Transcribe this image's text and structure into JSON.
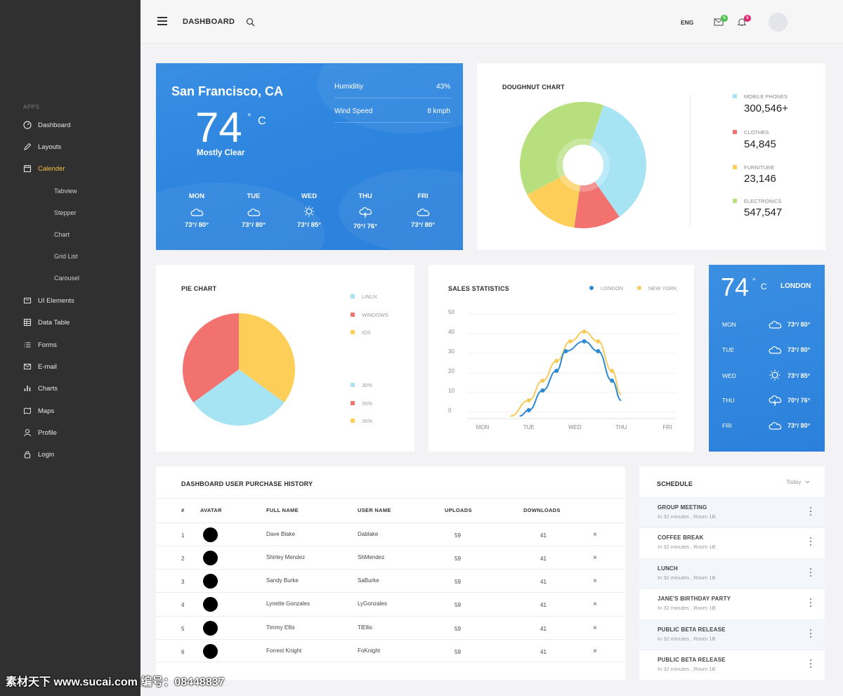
{
  "sidebar": {
    "section": "APPS",
    "items": [
      {
        "label": "Dashboard",
        "icon": "dashboard-icon"
      },
      {
        "label": "Layouts",
        "icon": "pencil-icon"
      },
      {
        "label": "Calender",
        "icon": "calendar-icon"
      },
      {
        "label": "UI Elements",
        "icon": "ui-elements-icon"
      },
      {
        "label": "Data Table",
        "icon": "table-icon"
      },
      {
        "label": "Forms",
        "icon": "list-icon"
      },
      {
        "label": "E-mail",
        "icon": "mail-icon"
      },
      {
        "label": "Charts",
        "icon": "bar-chart-icon"
      },
      {
        "label": "Maps",
        "icon": "map-icon"
      },
      {
        "label": "Profile",
        "icon": "user-icon"
      },
      {
        "label": "Login",
        "icon": "lock-icon"
      }
    ],
    "subitems": [
      "Tabview",
      "Stepper",
      "Chart",
      "Grid List",
      "Carousel"
    ],
    "active_color": "#f5c242"
  },
  "header": {
    "title": "DASHBOARD",
    "lang": "ENG",
    "mail_badge": "5",
    "bell_badge": "5",
    "mail_badge_color": "#4cbf4c",
    "bell_badge_color": "#e0266f"
  },
  "weather_main": {
    "city": "San Francisco, CA",
    "temp": "74",
    "deg": "°",
    "unit": "C",
    "condition": "Mostly Clear",
    "humidity_label": "Humiditiy",
    "humidity_value": "43%",
    "wind_label": "Wind Speed",
    "wind_value": "8 kmph",
    "days": [
      {
        "day": "MON",
        "icon": "cloud-icon",
        "temp": "73°/ 80°"
      },
      {
        "day": "TUE",
        "icon": "cloud-icon",
        "temp": "73°/ 80°"
      },
      {
        "day": "WED",
        "icon": "sun-icon",
        "temp": "73°/ 85°"
      },
      {
        "day": "THU",
        "icon": "storm-icon",
        "temp": "70°/ 76°"
      },
      {
        "day": "FRI",
        "icon": "cloud-icon",
        "temp": "73°/ 80°"
      }
    ]
  },
  "doughnut": {
    "title": "DOUGHNUT CHART",
    "legend": [
      {
        "label": "MOBILE PHONES",
        "value": "300,546+",
        "color": "#a6e3f3"
      },
      {
        "label": "CLOTHES",
        "value": "54,845",
        "color": "#f2726f"
      },
      {
        "label": "FURNITURE",
        "value": "23,146",
        "color": "#fdcf58"
      },
      {
        "label": "ELECTRONICS",
        "value": "547,547",
        "color": "#b7df7e"
      }
    ]
  },
  "pie": {
    "title": "PIE CHART",
    "legend": [
      {
        "label": "LINUX",
        "color": "#a6e3f3"
      },
      {
        "label": "WINDOWS",
        "color": "#f2726f"
      },
      {
        "label": "IOS",
        "color": "#fdcf58"
      }
    ],
    "percents": [
      {
        "label": "30%",
        "color": "#a6e3f3"
      },
      {
        "label": "35%",
        "color": "#f2726f"
      },
      {
        "label": "35%",
        "color": "#fdcf58"
      }
    ]
  },
  "sales": {
    "title": "SALES STATISTICS",
    "legend": [
      {
        "label": "LONDON",
        "color": "#2c89d2"
      },
      {
        "label": "NEW YORK",
        "color": "#f5cb5c"
      }
    ]
  },
  "chart_data": [
    {
      "type": "pie",
      "title": "DOUGHNUT CHART",
      "categories": [
        "MOBILE PHONES",
        "CLOTHES",
        "FURNITURE",
        "ELECTRONICS"
      ],
      "values": [
        35,
        12,
        15,
        38
      ],
      "colors": [
        "#a6e3f3",
        "#f2726f",
        "#fdcf58",
        "#b7df7e"
      ]
    },
    {
      "type": "pie",
      "title": "PIE CHART",
      "categories": [
        "LINUX",
        "WINDOWS",
        "IOS"
      ],
      "values": [
        30,
        35,
        35
      ],
      "colors": [
        "#a6e3f3",
        "#f2726f",
        "#fdcf58"
      ]
    },
    {
      "type": "line",
      "title": "SALES STATISTICS",
      "categories": [
        "MON",
        "TUE",
        "WED",
        "THU",
        "FRI"
      ],
      "ylim": [
        0,
        50
      ],
      "yticks": [
        0,
        10,
        20,
        30,
        40,
        50
      ],
      "series": [
        {
          "name": "LONDON",
          "color": "#2c89d2",
          "x": [
            0.8,
            1.0,
            1.3,
            1.6,
            1.8,
            2.2,
            2.5,
            2.8,
            3.0
          ],
          "y": [
            -3,
            0,
            10,
            20,
            30,
            35,
            30,
            15,
            5
          ]
        },
        {
          "name": "NEW YORK",
          "color": "#f5cb5c",
          "x": [
            0.6,
            1.0,
            1.3,
            1.6,
            1.9,
            2.2,
            2.5,
            2.8,
            3.0
          ],
          "y": [
            -3,
            5,
            15,
            25,
            35,
            40,
            35,
            20,
            8
          ]
        }
      ]
    }
  ],
  "weather_small": {
    "temp": "74",
    "deg": "°",
    "unit": "C",
    "city": "LONDON",
    "days": [
      {
        "day": "MON",
        "icon": "cloud-icon",
        "temp": "73°/ 80°"
      },
      {
        "day": "TUE",
        "icon": "cloud-icon",
        "temp": "73°/ 80°"
      },
      {
        "day": "WED",
        "icon": "sun-icon",
        "temp": "73°/ 85°"
      },
      {
        "day": "THU",
        "icon": "storm-icon",
        "temp": "70°/ 76°"
      },
      {
        "day": "FRI",
        "icon": "cloud-icon",
        "temp": "73°/ 80°"
      }
    ]
  },
  "purchase_table": {
    "title": "DASHBOARD USER PURCHASE HISTORY",
    "headers": [
      "#",
      "AVATAR",
      "FULL NAME",
      "USER NAME",
      "UPLOADS",
      "DOWNLOADS"
    ],
    "rows": [
      {
        "n": "1",
        "name": "Dave Blake",
        "user": "Dablake",
        "uploads": "59",
        "downloads": "41"
      },
      {
        "n": "2",
        "name": "Shirley Mendez",
        "user": "ShMendez",
        "uploads": "59",
        "downloads": "41"
      },
      {
        "n": "3",
        "name": "Sandy Burke",
        "user": "SaBurke",
        "uploads": "59",
        "downloads": "41"
      },
      {
        "n": "4",
        "name": "Lynette Gonzales",
        "user": "LyGonzales",
        "uploads": "59",
        "downloads": "41"
      },
      {
        "n": "5",
        "name": "Timmy Ellis",
        "user": "TiEllis",
        "uploads": "59",
        "downloads": "41"
      },
      {
        "n": "6",
        "name": "Forrest Knight",
        "user": "FoKnight",
        "uploads": "59",
        "downloads": "41"
      }
    ],
    "delete_glyph": "×"
  },
  "schedule": {
    "title": "SCHEDULE",
    "filter": "Today",
    "items": [
      {
        "name": "GROUP MEETING",
        "sub": "In 32 minutes , Room 1B"
      },
      {
        "name": "COFFEE BREAK",
        "sub": "In 32 minutes , Room 1B"
      },
      {
        "name": "LUNCH",
        "sub": "In 32 minutes , Room 1B"
      },
      {
        "name": "JANE'S BIRTHDAY PARTY",
        "sub": "In 32 minutes , Room 1B"
      },
      {
        "name": "PUBLIC BETA RELEASE",
        "sub": "In 32 minutes , Room 1B"
      },
      {
        "name": "PUBLIC BETA RELEASE",
        "sub": "In 32 minutes , Room 1B"
      }
    ]
  },
  "watermark": "素材天下 www.sucai.com  编号：08448837"
}
